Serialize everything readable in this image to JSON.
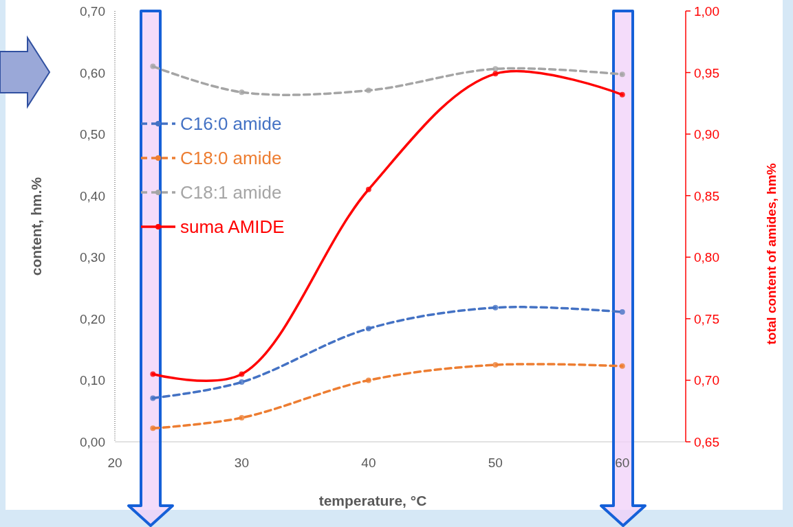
{
  "chart_data": {
    "type": "line",
    "xlabel": "temperature, °C",
    "ylabel": "content, hm.%",
    "y2label": "total content of amides, hm%",
    "xlim": [
      20,
      65
    ],
    "xticks": [
      20,
      30,
      40,
      50,
      60
    ],
    "ylim": [
      0,
      0.7
    ],
    "yticks": [
      {
        "value": 0,
        "label": "0,00"
      },
      {
        "value": 0.1,
        "label": "0,10"
      },
      {
        "value": 0.2,
        "label": "0,20"
      },
      {
        "value": 0.3,
        "label": "0,30"
      },
      {
        "value": 0.4,
        "label": "0,40"
      },
      {
        "value": 0.5,
        "label": "0,50"
      },
      {
        "value": 0.6,
        "label": "0,60"
      },
      {
        "value": 0.7,
        "label": "0,70"
      }
    ],
    "y2lim": [
      0.65,
      1
    ],
    "y2ticks": [
      {
        "value": 0.65,
        "label": "0,65"
      },
      {
        "value": 0.7,
        "label": "0,70"
      },
      {
        "value": 0.75,
        "label": "0,75"
      },
      {
        "value": 0.8,
        "label": "0,80"
      },
      {
        "value": 0.85,
        "label": "0,85"
      },
      {
        "value": 0.9,
        "label": "0,90"
      },
      {
        "value": 0.95,
        "label": "0,95"
      },
      {
        "value": 1,
        "label": "1,00"
      }
    ],
    "x": [
      23,
      30,
      40,
      50,
      60
    ],
    "marker": "circle",
    "grid": false,
    "legend": "top left",
    "series": [
      {
        "name": "C16:0 amide",
        "color": "#4472c4",
        "line_style": "dashed",
        "values": [
          0.071,
          0.097,
          0.184,
          0.218,
          0.211
        ]
      },
      {
        "name": "C18:0 amide",
        "color": "#ed7d31",
        "line_style": "dashed",
        "values": [
          0.022,
          0.039,
          0.1,
          0.125,
          0.123
        ]
      },
      {
        "name": "C18:1 amide",
        "color": "#a5a5a5",
        "line_style": "dashed",
        "values": [
          0.61,
          0.568,
          0.571,
          0.606,
          0.597
        ]
      },
      {
        "name": "suma AMIDE",
        "color": "#ff0000",
        "line_style": "solid",
        "axis": "y2",
        "values": [
          0.705,
          0.705,
          0.855,
          0.949,
          0.932
        ]
      }
    ]
  }
}
